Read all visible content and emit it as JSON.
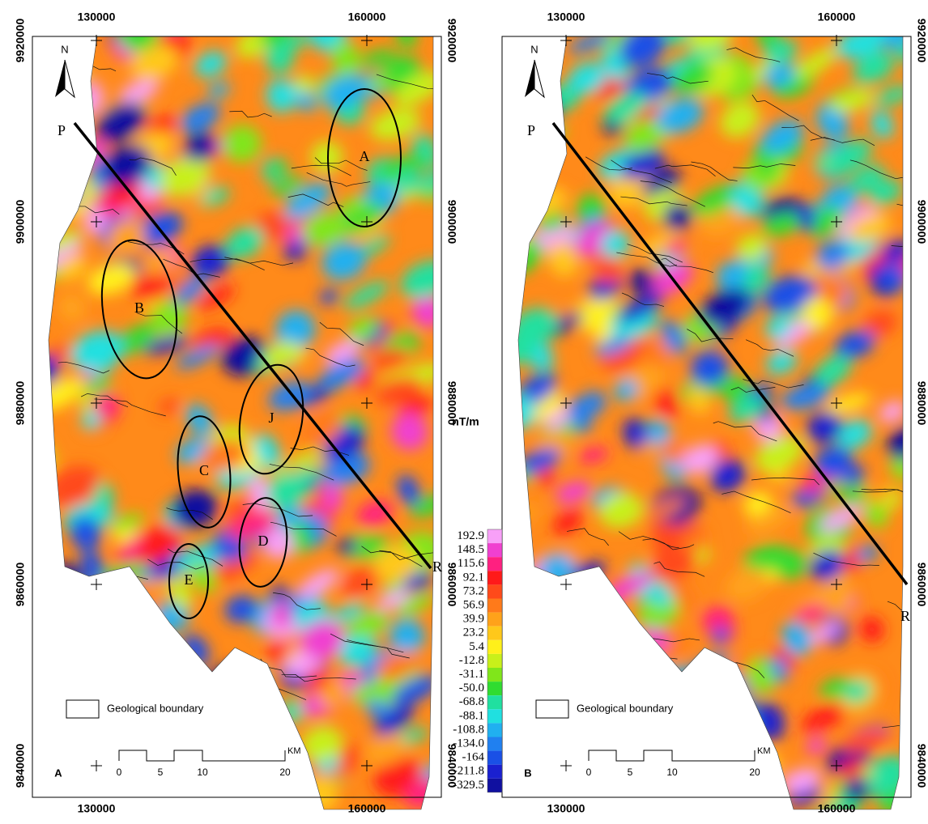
{
  "panels": [
    {
      "label": "A",
      "north": "N",
      "x_ticks": [
        "130000",
        "160000"
      ],
      "y_ticks": [
        "9920000",
        "9900000",
        "9880000",
        "9860000",
        "9840000"
      ],
      "profile": {
        "start": "P",
        "end": "R"
      },
      "anomalies": [
        "A",
        "B",
        "J",
        "C",
        "D",
        "E"
      ],
      "legend": "Geological boundary",
      "scale": {
        "ticks": [
          "0",
          "5",
          "10",
          "20"
        ],
        "unit": "KM"
      }
    },
    {
      "label": "B",
      "north": "N",
      "x_ticks": [
        "130000",
        "160000"
      ],
      "y_ticks": [
        "9920000",
        "9900000",
        "9880000",
        "9860000",
        "9840000"
      ],
      "profile": {
        "start": "P",
        "end": "R"
      },
      "legend": "Geological boundary",
      "scale": {
        "ticks": [
          "0",
          "5",
          "10",
          "20"
        ],
        "unit": "KM"
      }
    }
  ],
  "colorbar": {
    "unit": "nT/m",
    "entries": [
      {
        "value": 192.9,
        "color": "#f8a0f8"
      },
      {
        "value": 148.5,
        "color": "#f040d0"
      },
      {
        "value": 115.6,
        "color": "#ff2080"
      },
      {
        "value": 92.1,
        "color": "#ff1a1a"
      },
      {
        "value": 73.2,
        "color": "#ff4a1a"
      },
      {
        "value": 56.9,
        "color": "#ff7a1a"
      },
      {
        "value": 39.9,
        "color": "#ffa21a"
      },
      {
        "value": 23.2,
        "color": "#ffc81a"
      },
      {
        "value": 5.4,
        "color": "#fff01a"
      },
      {
        "value": -12.8,
        "color": "#c8f01a"
      },
      {
        "value": -31.1,
        "color": "#80e61a"
      },
      {
        "value": -50,
        "label": "-50.0",
        "color": "#30dc30"
      },
      {
        "value": -68.8,
        "color": "#20e0a0"
      },
      {
        "value": -88.1,
        "color": "#20e0e0"
      },
      {
        "value": -108.8,
        "color": "#20b0f0"
      },
      {
        "value": -134,
        "label": "-134.0",
        "color": "#2080f0"
      },
      {
        "value": -164,
        "color": "#1a50e6"
      },
      {
        "value": -211.8,
        "color": "#1a20d0"
      },
      {
        "value": -329.5,
        "color": "#1010a0"
      }
    ]
  }
}
